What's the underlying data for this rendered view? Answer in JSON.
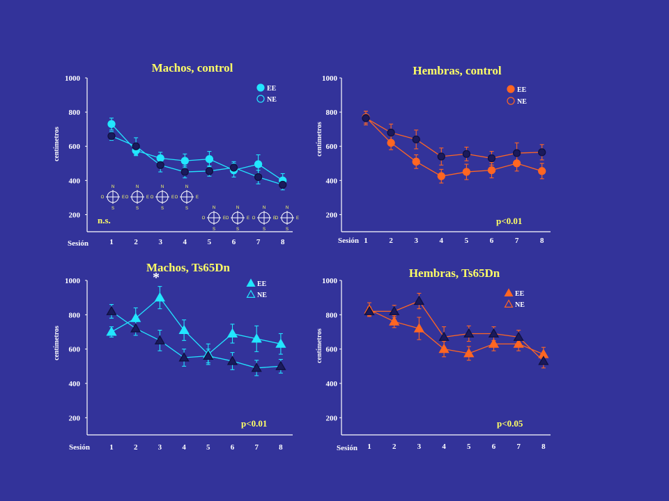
{
  "chart_data": [
    {
      "type": "line",
      "title": "Machos, control",
      "ylabel": "centímetros",
      "xlabel": "Sesión",
      "x": [
        1,
        2,
        3,
        4,
        5,
        6,
        7,
        8
      ],
      "ylim": [
        100,
        1000
      ],
      "yticks": [
        200,
        400,
        600,
        800,
        1000
      ],
      "marker": "circle",
      "color": "#22e6ff",
      "stat": "n.s.",
      "series": [
        {
          "name": "EE",
          "values": [
            730,
            575,
            530,
            515,
            525,
            460,
            495,
            400
          ],
          "errors": [
            35,
            30,
            35,
            40,
            45,
            40,
            55,
            40
          ]
        },
        {
          "name": "NE",
          "values": [
            660,
            600,
            490,
            450,
            455,
            475,
            420,
            375
          ],
          "errors": [
            25,
            50,
            40,
            35,
            30,
            35,
            40,
            30
          ]
        }
      ]
    },
    {
      "type": "line",
      "title": "Hembras, control",
      "ylabel": "centímetros",
      "xlabel": "Sesión",
      "x": [
        1,
        2,
        3,
        4,
        5,
        6,
        7,
        8
      ],
      "ylim": [
        100,
        1000
      ],
      "yticks": [
        200,
        400,
        600,
        800,
        1000
      ],
      "marker": "circle",
      "color": "#ff6622",
      "stat": "p<0.01",
      "series": [
        {
          "name": "EE",
          "values": [
            770,
            620,
            510,
            425,
            450,
            460,
            500,
            455
          ],
          "errors": [
            35,
            40,
            40,
            40,
            45,
            45,
            45,
            45
          ]
        },
        {
          "name": "NE",
          "values": [
            765,
            680,
            640,
            540,
            555,
            530,
            560,
            565
          ],
          "errors": [
            40,
            50,
            55,
            50,
            40,
            40,
            60,
            45
          ]
        }
      ]
    },
    {
      "type": "line",
      "title": "Machos, Ts65Dn",
      "ylabel": "centímetros",
      "xlabel": "Sesión",
      "x": [
        1,
        2,
        3,
        4,
        5,
        6,
        7,
        8
      ],
      "ylim": [
        100,
        1000
      ],
      "yticks": [
        200,
        400,
        600,
        800,
        1000
      ],
      "marker": "triangle",
      "color": "#22e6ff",
      "stat": "p<0.01",
      "annotation": "*",
      "series": [
        {
          "name": "EE",
          "values": [
            700,
            780,
            900,
            710,
            570,
            690,
            660,
            630
          ],
          "errors": [
            30,
            60,
            65,
            60,
            60,
            55,
            75,
            60
          ]
        },
        {
          "name": "NE",
          "values": [
            820,
            720,
            650,
            550,
            560,
            530,
            490,
            500
          ],
          "errors": [
            40,
            40,
            60,
            50,
            40,
            50,
            45,
            40
          ]
        }
      ]
    },
    {
      "type": "line",
      "title": "Hembras, Ts65Dn",
      "ylabel": "centímetros",
      "xlabel": "Sesión",
      "x": [
        1,
        2,
        3,
        4,
        5,
        6,
        7,
        8
      ],
      "ylim": [
        100,
        1000
      ],
      "yticks": [
        200,
        400,
        600,
        800,
        1000
      ],
      "marker": "triangle",
      "color": "#ff6622",
      "stat": "p<0.05",
      "series": [
        {
          "name": "EE",
          "values": [
            830,
            760,
            720,
            600,
            575,
            630,
            630,
            570
          ],
          "errors": [
            40,
            35,
            65,
            45,
            40,
            40,
            40,
            40
          ]
        },
        {
          "name": "NE",
          "values": [
            820,
            820,
            880,
            670,
            690,
            690,
            670,
            530
          ],
          "errors": [
            25,
            35,
            45,
            60,
            45,
            40,
            40,
            40
          ]
        }
      ]
    }
  ],
  "compass_labels": {
    "n": "N",
    "s": "S",
    "w": "O",
    "e": "E"
  }
}
